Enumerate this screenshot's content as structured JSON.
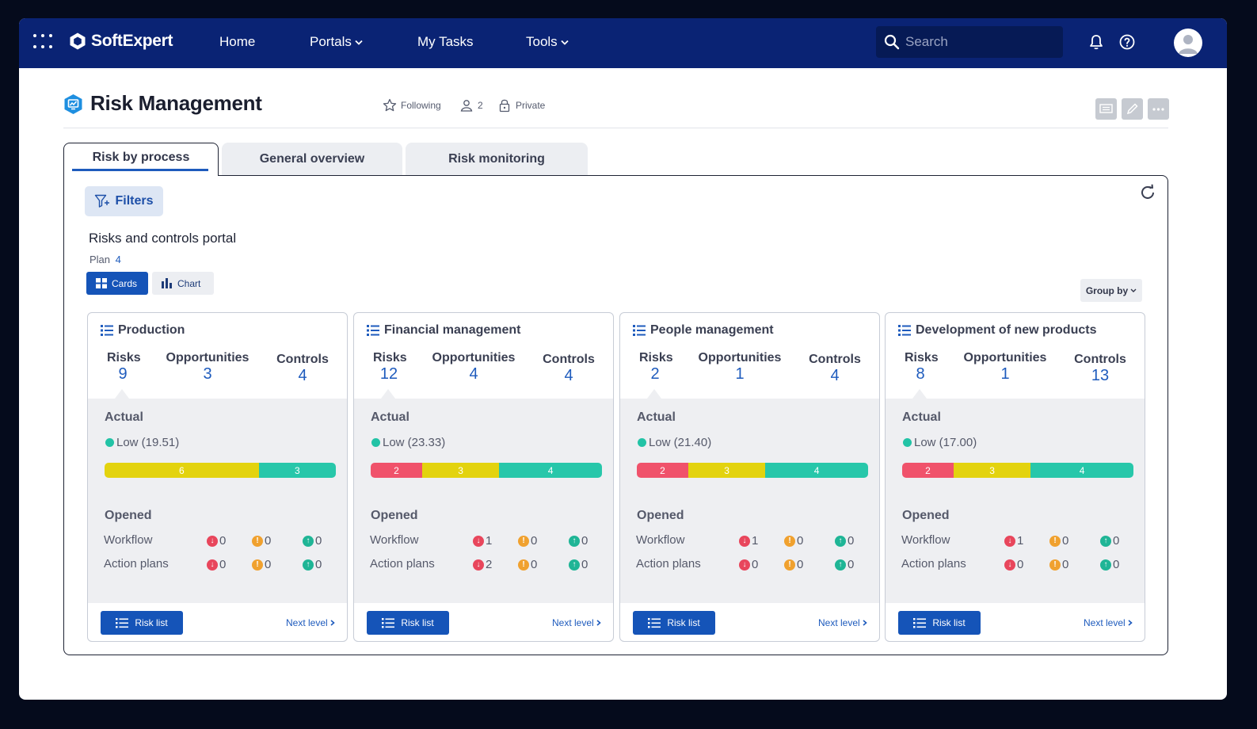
{
  "brand": "SoftExpert",
  "nav": {
    "home": "Home",
    "portals": "Portals",
    "my_tasks": "My Tasks",
    "tools": "Tools",
    "search_placeholder": "Search"
  },
  "page": {
    "title": "Risk Management",
    "following": "Following",
    "members": "2",
    "visibility": "Private"
  },
  "tabs": [
    "Risk by process",
    "General overview",
    "Risk monitoring"
  ],
  "panel": {
    "filters": "Filters",
    "portal_title": "Risks and controls portal",
    "plan_label": "Plan",
    "plan_value": "4",
    "view_cards": "Cards",
    "view_chart": "Chart",
    "group_by": "Group by"
  },
  "labels": {
    "risks": "Risks",
    "opportunities": "Opportunities",
    "controls": "Controls",
    "actual": "Actual",
    "opened": "Opened",
    "workflow": "Workflow",
    "action_plans": "Action plans",
    "risk_list": "Risk list",
    "next_level": "Next level"
  },
  "colors": {
    "nav_bg": "#0a2374",
    "primary": "#1554b8",
    "level_red": "#f0526b",
    "level_yellow": "#e3d30f",
    "level_teal": "#27c7aa"
  },
  "cards": [
    {
      "name": "Production",
      "risks": "9",
      "opportunities": "3",
      "controls": "4",
      "level": "Low (19.51)",
      "bar": [
        {
          "color": "yellow",
          "value": "6",
          "weight": 6
        },
        {
          "color": "teal",
          "value": "3",
          "weight": 3
        }
      ],
      "workflow": [
        "0",
        "0",
        "0"
      ],
      "action_plans": [
        "0",
        "0",
        "0"
      ]
    },
    {
      "name": "Financial management",
      "risks": "12",
      "opportunities": "4",
      "controls": "4",
      "level": "Low (23.33)",
      "bar": [
        {
          "color": "red",
          "value": "2",
          "weight": 2
        },
        {
          "color": "yellow",
          "value": "3",
          "weight": 3
        },
        {
          "color": "teal",
          "value": "4",
          "weight": 4
        }
      ],
      "workflow": [
        "1",
        "0",
        "0"
      ],
      "action_plans": [
        "2",
        "0",
        "0"
      ]
    },
    {
      "name": "People management",
      "risks": "2",
      "opportunities": "1",
      "controls": "4",
      "level": "Low (21.40)",
      "bar": [
        {
          "color": "red",
          "value": "2",
          "weight": 2
        },
        {
          "color": "yellow",
          "value": "3",
          "weight": 3
        },
        {
          "color": "teal",
          "value": "4",
          "weight": 4
        }
      ],
      "workflow": [
        "1",
        "0",
        "0"
      ],
      "action_plans": [
        "0",
        "0",
        "0"
      ]
    },
    {
      "name": "Development of new products",
      "risks": "8",
      "opportunities": "1",
      "controls": "13",
      "level": "Low (17.00)",
      "bar": [
        {
          "color": "red",
          "value": "2",
          "weight": 2
        },
        {
          "color": "yellow",
          "value": "3",
          "weight": 3
        },
        {
          "color": "teal",
          "value": "4",
          "weight": 4
        }
      ],
      "workflow": [
        "1",
        "0",
        "0"
      ],
      "action_plans": [
        "0",
        "0",
        "0"
      ]
    }
  ]
}
